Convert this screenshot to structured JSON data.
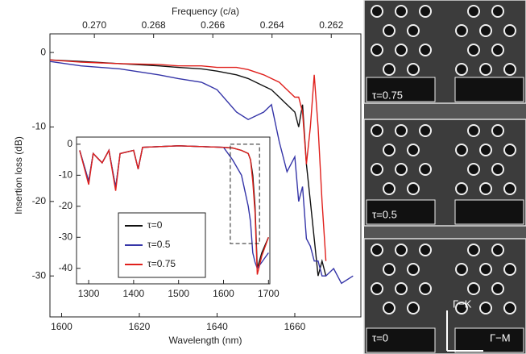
{
  "chart_data": [
    {
      "type": "line",
      "xlabel": "Wavelength (nm)",
      "ylabel": "Insertion loss (dB)",
      "x2label": "Frequency (c/a)",
      "xlim": [
        1597,
        1677
      ],
      "xticks": [
        1600,
        1620,
        1640,
        1660
      ],
      "ylim": [
        -35.5,
        2.5
      ],
      "yticks": [
        0,
        -10,
        -20,
        -30
      ],
      "x2lim": [
        0.2715,
        0.261
      ],
      "x2ticks": [
        {
          "value": 0.27,
          "label": "0.270"
        },
        0.268,
        0.266,
        0.264,
        0.262
      ],
      "x": [
        1597,
        1605,
        1615,
        1625,
        1630,
        1636,
        1640,
        1645,
        1648,
        1652,
        1654,
        1656,
        1658,
        1660,
        1661,
        1662,
        1663,
        1664,
        1665,
        1666,
        1667,
        1668,
        1670,
        1672,
        1675
      ],
      "series": [
        {
          "color": "#111111",
          "values": [
            -1,
            -1.2,
            -1.5,
            -1.8,
            -2,
            -2.2,
            -2.5,
            -3,
            -3.5,
            -4.5,
            -5,
            -6,
            -7,
            -8,
            -10,
            -7,
            -15,
            -20,
            -25,
            -30,
            -28,
            -30,
            null,
            null,
            null
          ]
        },
        {
          "color": "#3535a8",
          "values": [
            -1.2,
            -1.8,
            -2.2,
            -3,
            -3.5,
            -4,
            -5,
            -8,
            -9,
            -8,
            -7,
            -12,
            -16,
            -14,
            -20,
            -18,
            -25,
            -26,
            -28,
            -28,
            -30,
            -30,
            -29,
            -31,
            -30
          ]
        },
        {
          "color": "#e0201c",
          "values": [
            -1,
            -1.3,
            -1.5,
            -1.6,
            -1.8,
            -1.8,
            -2,
            -2,
            -2.3,
            -3,
            -3.5,
            -4,
            -5,
            -6,
            -6,
            -8,
            -15,
            -10,
            -3,
            -10,
            -20,
            -28,
            null,
            null,
            null
          ]
        }
      ]
    },
    {
      "type": "line",
      "legend": "lower-left",
      "xlim": [
        1273,
        1703
      ],
      "xticks": [
        1300,
        1400,
        1500,
        1600,
        1700
      ],
      "ylim": [
        -45,
        2.3
      ],
      "yticks": [
        0,
        -10,
        -20,
        -30,
        -40
      ],
      "x": [
        1280,
        1300,
        1310,
        1330,
        1345,
        1360,
        1370,
        1400,
        1410,
        1420,
        1500,
        1600,
        1620,
        1640,
        1655,
        1660,
        1665,
        1670,
        1675,
        1685,
        1700
      ],
      "series": [
        {
          "name": "τ=0",
          "color": "#111111",
          "values": [
            -2,
            -12,
            -3,
            -6,
            -2,
            -14,
            -3,
            -2,
            -8,
            -1,
            -0.5,
            -1,
            -1.2,
            -2,
            -3,
            -5,
            -10,
            -20,
            -40,
            -35,
            -30
          ]
        },
        {
          "name": "τ=0.5",
          "color": "#3535a8",
          "values": [
            -2,
            -12,
            -3,
            -6,
            -2,
            -14,
            -3,
            -2,
            -8,
            -1,
            -0.5,
            -1,
            -5,
            -10,
            -20,
            -25,
            -35,
            -38,
            -40,
            -38,
            -35
          ]
        },
        {
          "name": "τ=0.75",
          "color": "#e0201c",
          "values": [
            -2,
            -13,
            -3,
            -6,
            -2,
            -15,
            -3,
            -2,
            -8,
            -1,
            -0.5,
            -1,
            -1.2,
            -2,
            -3,
            -5,
            -12,
            -22,
            -42,
            -36,
            -30
          ]
        }
      ]
    }
  ],
  "images": {
    "panels": [
      "τ=0.75",
      "τ=0.5",
      "τ=0"
    ],
    "arrows": [
      "Γ−K",
      "Γ−M"
    ]
  }
}
